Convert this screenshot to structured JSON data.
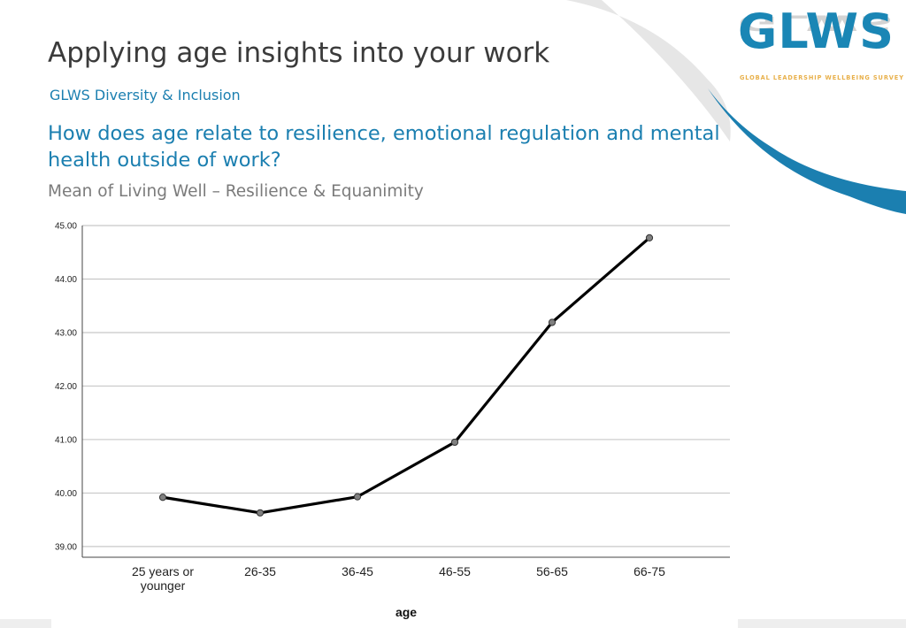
{
  "slide": {
    "title": "Applying age insights into your work",
    "subtitle": "GLWS Diversity & Inclusion",
    "question": "How does age relate to resilience, emotional regulation and mental health outside of work?",
    "chart_heading": "Mean of Living Well – Resilience & Equanimity"
  },
  "logo": {
    "text": "GLWS",
    "tagline": "GLOBAL LEADERSHIP WELLBEING SURVEY"
  },
  "colors": {
    "accent_blue": "#1b7fb0",
    "logo_blue": "#1a86b5",
    "tagline_gold": "#e8b04a",
    "line": "#000000",
    "marker": "#808080",
    "grid": "#c8c8c8"
  },
  "chart_data": {
    "type": "line",
    "categories": [
      "25 years or younger",
      "26-35",
      "36-45",
      "46-55",
      "56-65",
      "66-75"
    ],
    "category_lines": [
      [
        "25 years or",
        "younger"
      ],
      [
        "26-35"
      ],
      [
        "36-45"
      ],
      [
        "46-55"
      ],
      [
        "56-65"
      ],
      [
        "66-75"
      ]
    ],
    "values": [
      39.92,
      39.63,
      39.93,
      40.95,
      43.19,
      44.77
    ],
    "ylim": [
      38.8,
      45.0
    ],
    "yticks": [
      "39.00",
      "40.00",
      "41.00",
      "42.00",
      "43.00",
      "44.00",
      "45.00"
    ],
    "xlabel": "age",
    "ylabel": "",
    "grid": true
  }
}
